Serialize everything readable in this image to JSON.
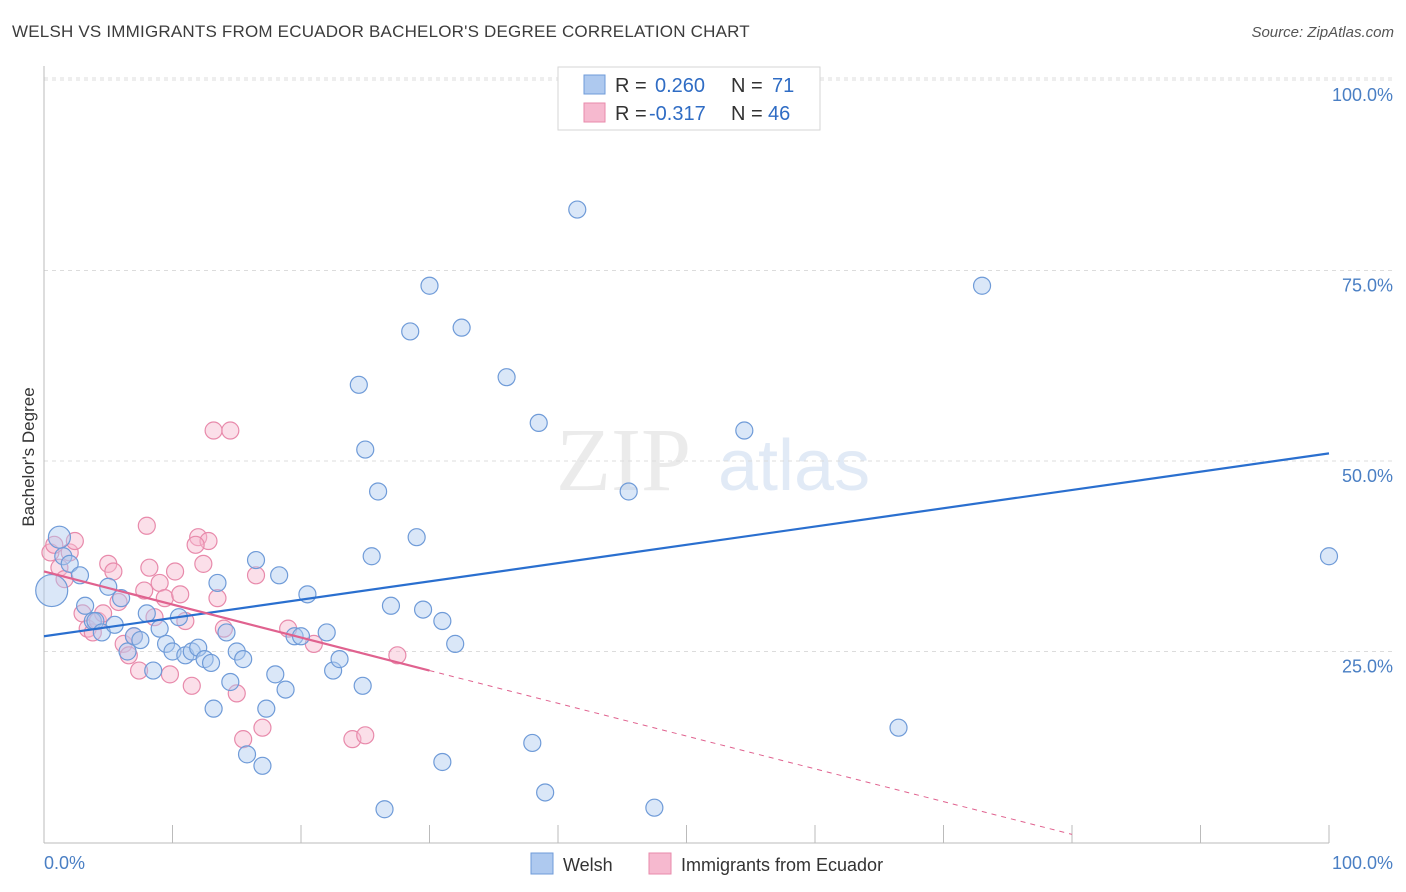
{
  "chart_data": {
    "type": "scatter",
    "title": "WELSH VS IMMIGRANTS FROM ECUADOR BACHELOR'S DEGREE CORRELATION CHART",
    "source": "Source: ZipAtlas.com",
    "ylabel": "Bachelor's Degree",
    "xlim": [
      0,
      100
    ],
    "ylim": [
      0,
      100
    ],
    "x_tick_labels": [
      "0.0%",
      "100.0%"
    ],
    "y_ticks": [
      25,
      50,
      75,
      100
    ],
    "y_tick_labels": [
      "25.0%",
      "50.0%",
      "75.0%",
      "100.0%"
    ],
    "legend": {
      "r_label": "R =",
      "n_label": "N =",
      "entries": [
        {
          "r": "0.260",
          "n": "71"
        },
        {
          "r": "-0.317",
          "n": "46"
        }
      ]
    },
    "watermark": {
      "zip": "ZIP",
      "atlas": "atlas"
    },
    "colors": {
      "welsh_fill": "#aec9ef",
      "welsh_stroke": "#6f9bd8",
      "welsh_line": "#2a6fcf",
      "ecuador_fill": "#f6b9cf",
      "ecuador_stroke": "#e88aab",
      "ecuador_line": "#e0628f",
      "tick_text": "#4a7fc4"
    },
    "series": [
      {
        "name": "Welsh",
        "trend": {
          "x": [
            0,
            100
          ],
          "y": [
            27.0,
            51.0
          ]
        },
        "points": [
          [
            0.6,
            33
          ],
          [
            1.2,
            40
          ],
          [
            1.5,
            37.5
          ],
          [
            2.0,
            36.5
          ],
          [
            2.8,
            35
          ],
          [
            3.2,
            31
          ],
          [
            3.8,
            29
          ],
          [
            4.0,
            29
          ],
          [
            4.5,
            27.5
          ],
          [
            5.0,
            33.5
          ],
          [
            5.5,
            28.5
          ],
          [
            6.0,
            32
          ],
          [
            6.5,
            25
          ],
          [
            7.0,
            27
          ],
          [
            7.5,
            26.5
          ],
          [
            8.0,
            30
          ],
          [
            8.5,
            22.5
          ],
          [
            9.0,
            28
          ],
          [
            9.5,
            26
          ],
          [
            10.0,
            25
          ],
          [
            10.5,
            29.5
          ],
          [
            11.0,
            24.5
          ],
          [
            11.5,
            25
          ],
          [
            12.0,
            25.5
          ],
          [
            12.5,
            24
          ],
          [
            13.0,
            23.5
          ],
          [
            13.2,
            17.5
          ],
          [
            13.5,
            34
          ],
          [
            14.2,
            27.5
          ],
          [
            14.5,
            21
          ],
          [
            15.0,
            25
          ],
          [
            15.5,
            24
          ],
          [
            15.8,
            11.5
          ],
          [
            16.5,
            37
          ],
          [
            17.0,
            10
          ],
          [
            17.3,
            17.5
          ],
          [
            18.0,
            22
          ],
          [
            18.3,
            35
          ],
          [
            18.8,
            20
          ],
          [
            19.5,
            27
          ],
          [
            20.0,
            27
          ],
          [
            20.5,
            32.5
          ],
          [
            22.0,
            27.5
          ],
          [
            22.5,
            22.5
          ],
          [
            23.0,
            24
          ],
          [
            24.5,
            60
          ],
          [
            24.8,
            20.5
          ],
          [
            25.0,
            51.5
          ],
          [
            25.5,
            37.5
          ],
          [
            26.0,
            46
          ],
          [
            27.0,
            31
          ],
          [
            28.5,
            67
          ],
          [
            29.0,
            40
          ],
          [
            29.5,
            30.5
          ],
          [
            30.0,
            73
          ],
          [
            31.0,
            10.5
          ],
          [
            32.0,
            26
          ],
          [
            32.5,
            67.5
          ],
          [
            36.0,
            61
          ],
          [
            38.0,
            13
          ],
          [
            38.5,
            55
          ],
          [
            39.0,
            6.5
          ],
          [
            41.5,
            83
          ],
          [
            45.5,
            46
          ],
          [
            47.5,
            4.5
          ],
          [
            54.5,
            54
          ],
          [
            66.5,
            15
          ],
          [
            73.0,
            73
          ],
          [
            100.0,
            37.5
          ],
          [
            26.5,
            4.3
          ],
          [
            31.0,
            29
          ]
        ]
      },
      {
        "name": "Immigrants from Ecuador",
        "trend": {
          "x": [
            0,
            30
          ],
          "y": [
            35.5,
            22.5
          ]
        },
        "trend_dashed": {
          "x": [
            30,
            80
          ],
          "y": [
            22.5,
            1.0
          ]
        },
        "points": [
          [
            0.5,
            38
          ],
          [
            0.8,
            39
          ],
          [
            1.2,
            36
          ],
          [
            1.6,
            34.5
          ],
          [
            2.0,
            38
          ],
          [
            2.4,
            39.5
          ],
          [
            3.0,
            30
          ],
          [
            3.4,
            28
          ],
          [
            3.8,
            27.5
          ],
          [
            4.2,
            29
          ],
          [
            4.6,
            30
          ],
          [
            5.0,
            36.5
          ],
          [
            5.4,
            35.5
          ],
          [
            5.8,
            31.5
          ],
          [
            6.2,
            26
          ],
          [
            6.6,
            24.5
          ],
          [
            7.0,
            27
          ],
          [
            7.4,
            22.5
          ],
          [
            7.8,
            33
          ],
          [
            8.2,
            36
          ],
          [
            8.6,
            29.5
          ],
          [
            9.0,
            34
          ],
          [
            9.4,
            32
          ],
          [
            9.8,
            22
          ],
          [
            10.2,
            35.5
          ],
          [
            10.6,
            32.5
          ],
          [
            11.0,
            29
          ],
          [
            11.5,
            20.5
          ],
          [
            12.0,
            40
          ],
          [
            12.4,
            36.5
          ],
          [
            12.8,
            39.5
          ],
          [
            13.2,
            54
          ],
          [
            13.5,
            32
          ],
          [
            14.0,
            28
          ],
          [
            14.5,
            54
          ],
          [
            15.0,
            19.5
          ],
          [
            15.5,
            13.5
          ],
          [
            16.5,
            35
          ],
          [
            17.0,
            15
          ],
          [
            19.0,
            28
          ],
          [
            21.0,
            26
          ],
          [
            24.0,
            13.5
          ],
          [
            25.0,
            14
          ],
          [
            27.5,
            24.5
          ],
          [
            8.0,
            41.5
          ],
          [
            11.8,
            39
          ]
        ]
      }
    ],
    "bottom_legend": [
      "Welsh",
      "Immigrants from Ecuador"
    ]
  }
}
